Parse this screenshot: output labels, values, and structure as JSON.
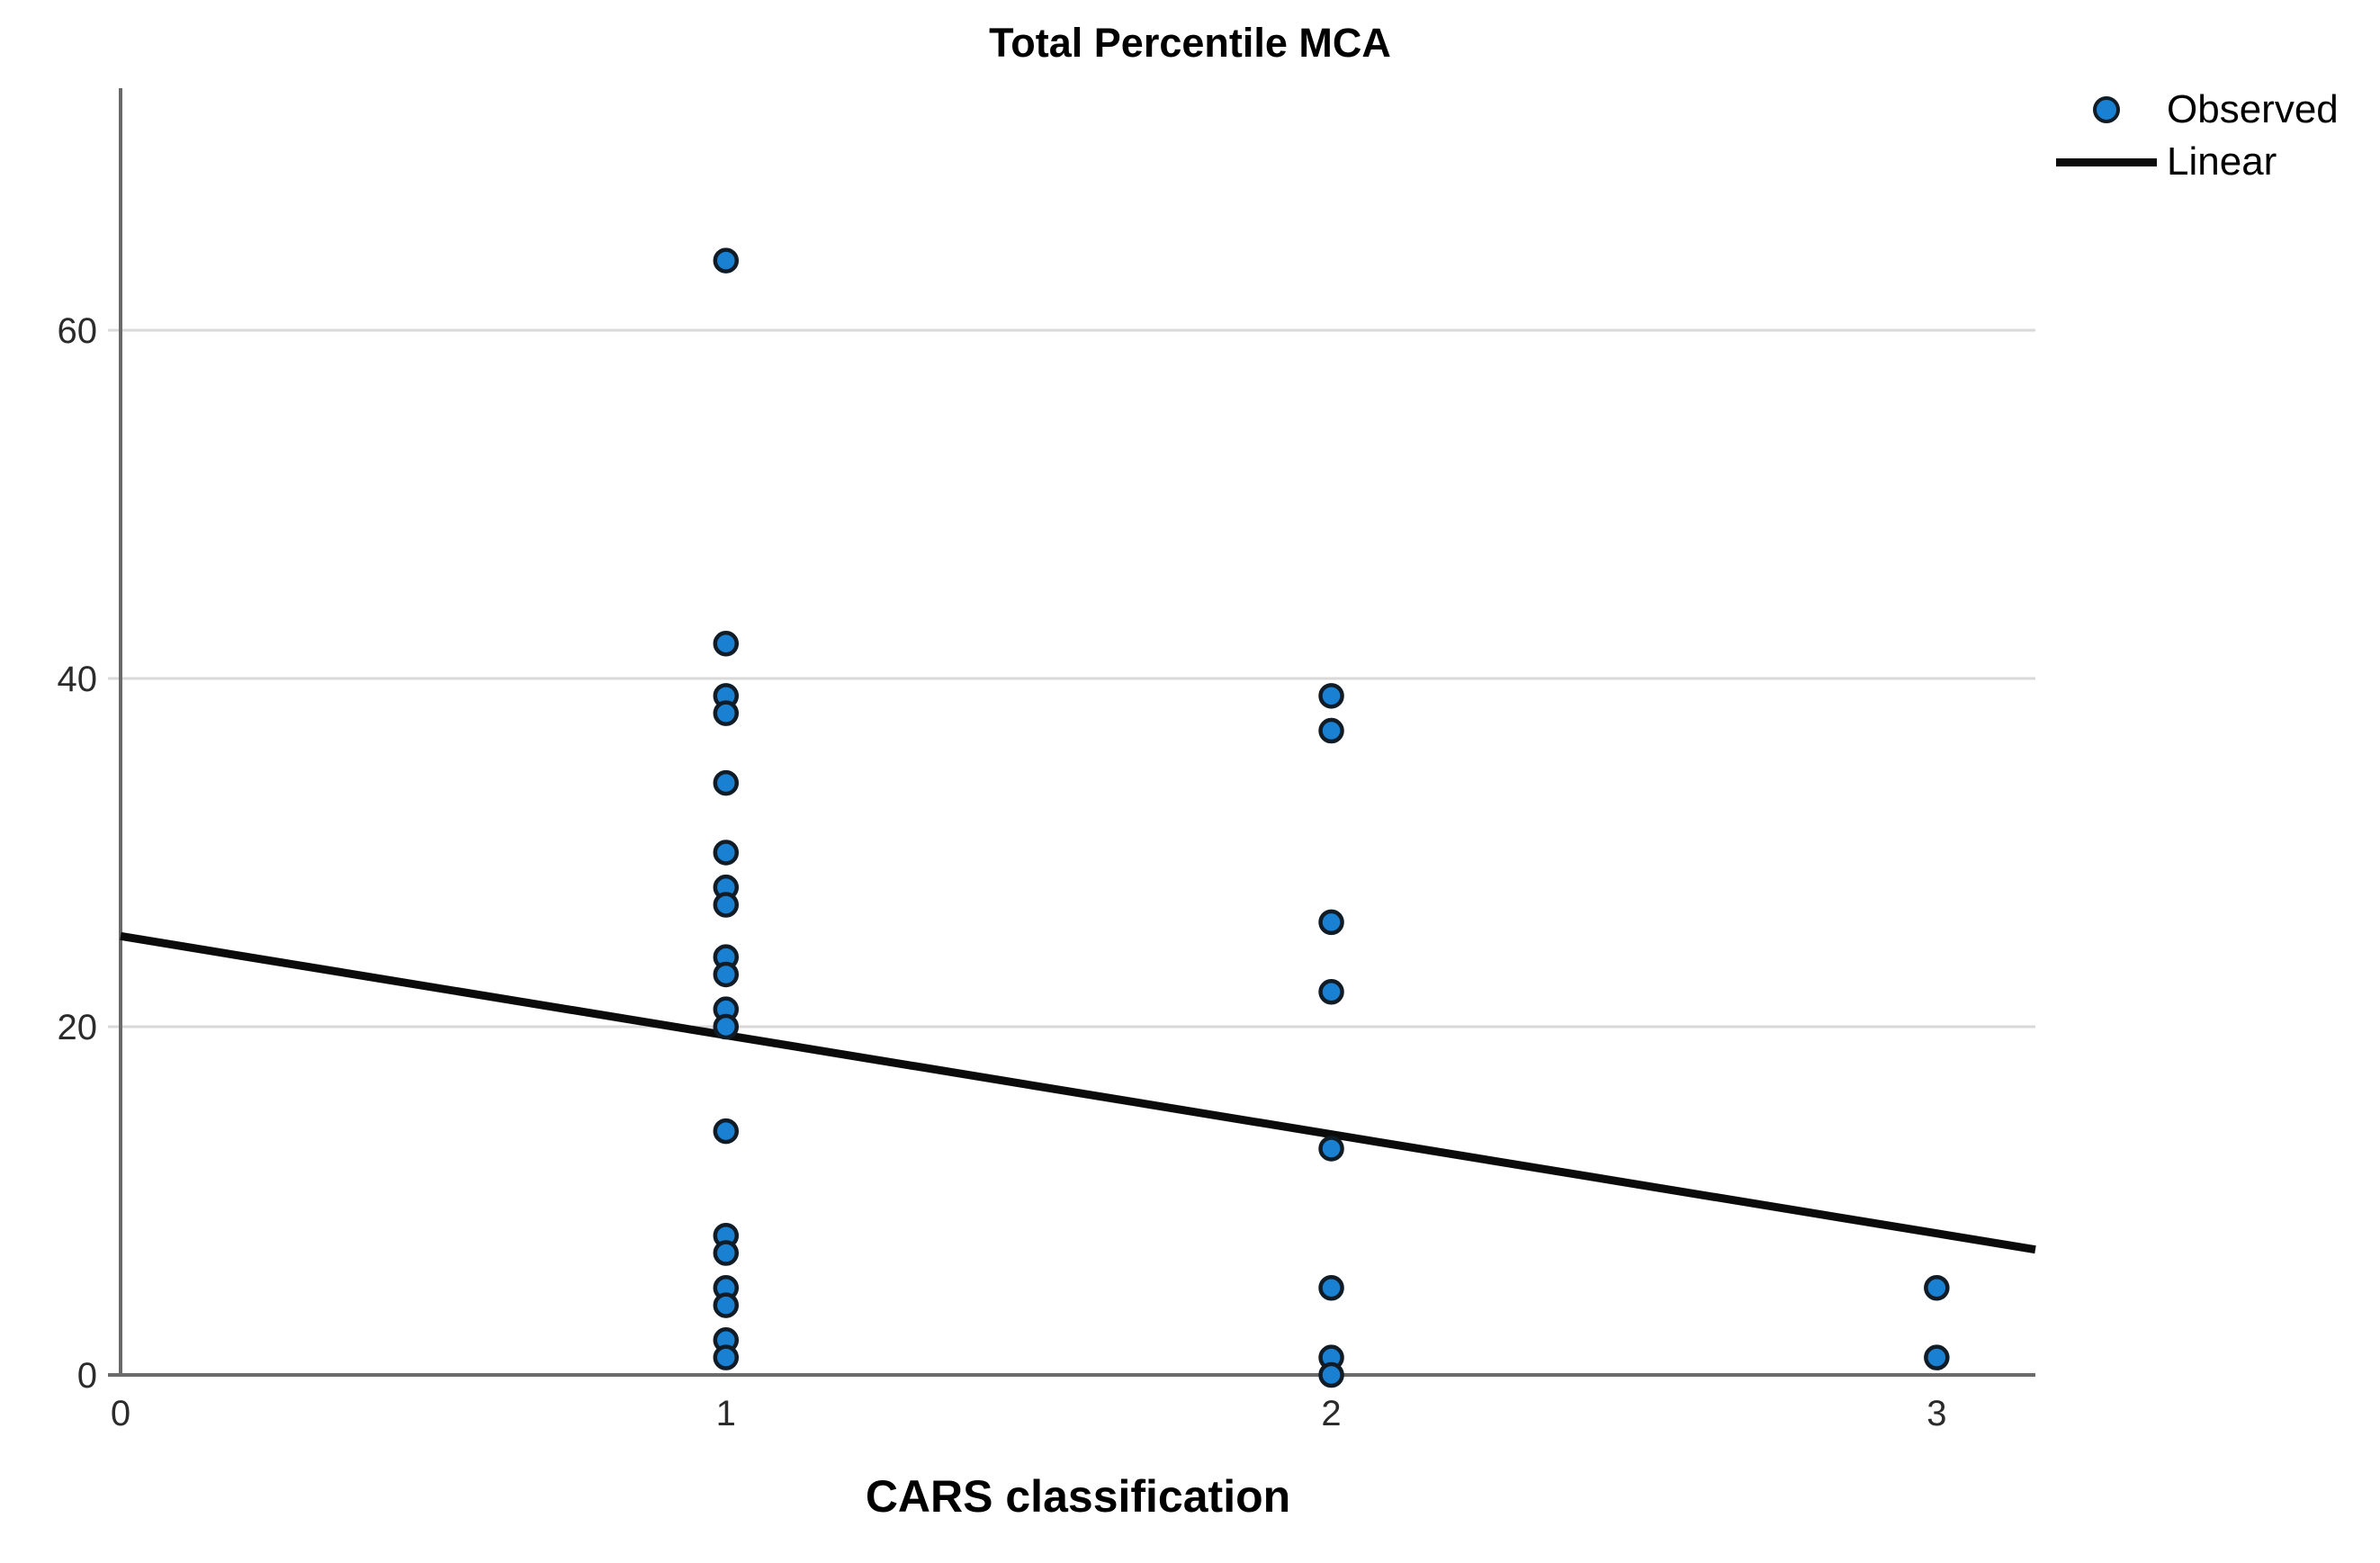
{
  "chart_data": {
    "type": "scatter",
    "title": "Total Percentile MCA",
    "xlabel": "CARS classification",
    "ylabel": "",
    "xlim": [
      0,
      3.163
    ],
    "ylim": [
      0,
      73.9
    ],
    "xticks": [
      0,
      1,
      2,
      3
    ],
    "yticks": [
      0,
      20,
      40,
      60
    ],
    "grid": "horizontal-only",
    "legend_position": "top-right-outside",
    "series": [
      {
        "name": "Observed",
        "type": "scatter",
        "marker": "circle",
        "marker_fill": "#1a80d2",
        "marker_stroke": "#111c26",
        "points": [
          [
            1,
            64
          ],
          [
            1,
            42
          ],
          [
            1,
            39
          ],
          [
            1,
            38
          ],
          [
            1,
            34
          ],
          [
            1,
            30
          ],
          [
            1,
            28
          ],
          [
            1,
            27
          ],
          [
            1,
            24
          ],
          [
            1,
            23
          ],
          [
            1,
            21
          ],
          [
            1,
            20
          ],
          [
            1,
            14
          ],
          [
            1,
            8
          ],
          [
            1,
            7
          ],
          [
            1,
            5
          ],
          [
            1,
            4
          ],
          [
            1,
            2
          ],
          [
            1,
            1
          ],
          [
            2,
            39
          ],
          [
            2,
            37
          ],
          [
            2,
            26
          ],
          [
            2,
            22
          ],
          [
            2,
            13
          ],
          [
            2,
            5
          ],
          [
            2,
            1
          ],
          [
            2,
            0
          ],
          [
            3,
            5
          ],
          [
            3,
            1
          ]
        ]
      },
      {
        "name": "Linear",
        "type": "line",
        "color": "#0b0b0b",
        "points": [
          [
            0,
            25.2
          ],
          [
            3.163,
            7.2
          ]
        ]
      }
    ],
    "colors": {
      "grid": "#d9d9d9",
      "axis": "#6a6a6a",
      "tick_text": "#2b2b2b",
      "title_text": "#000000",
      "background": "#ffffff"
    }
  }
}
